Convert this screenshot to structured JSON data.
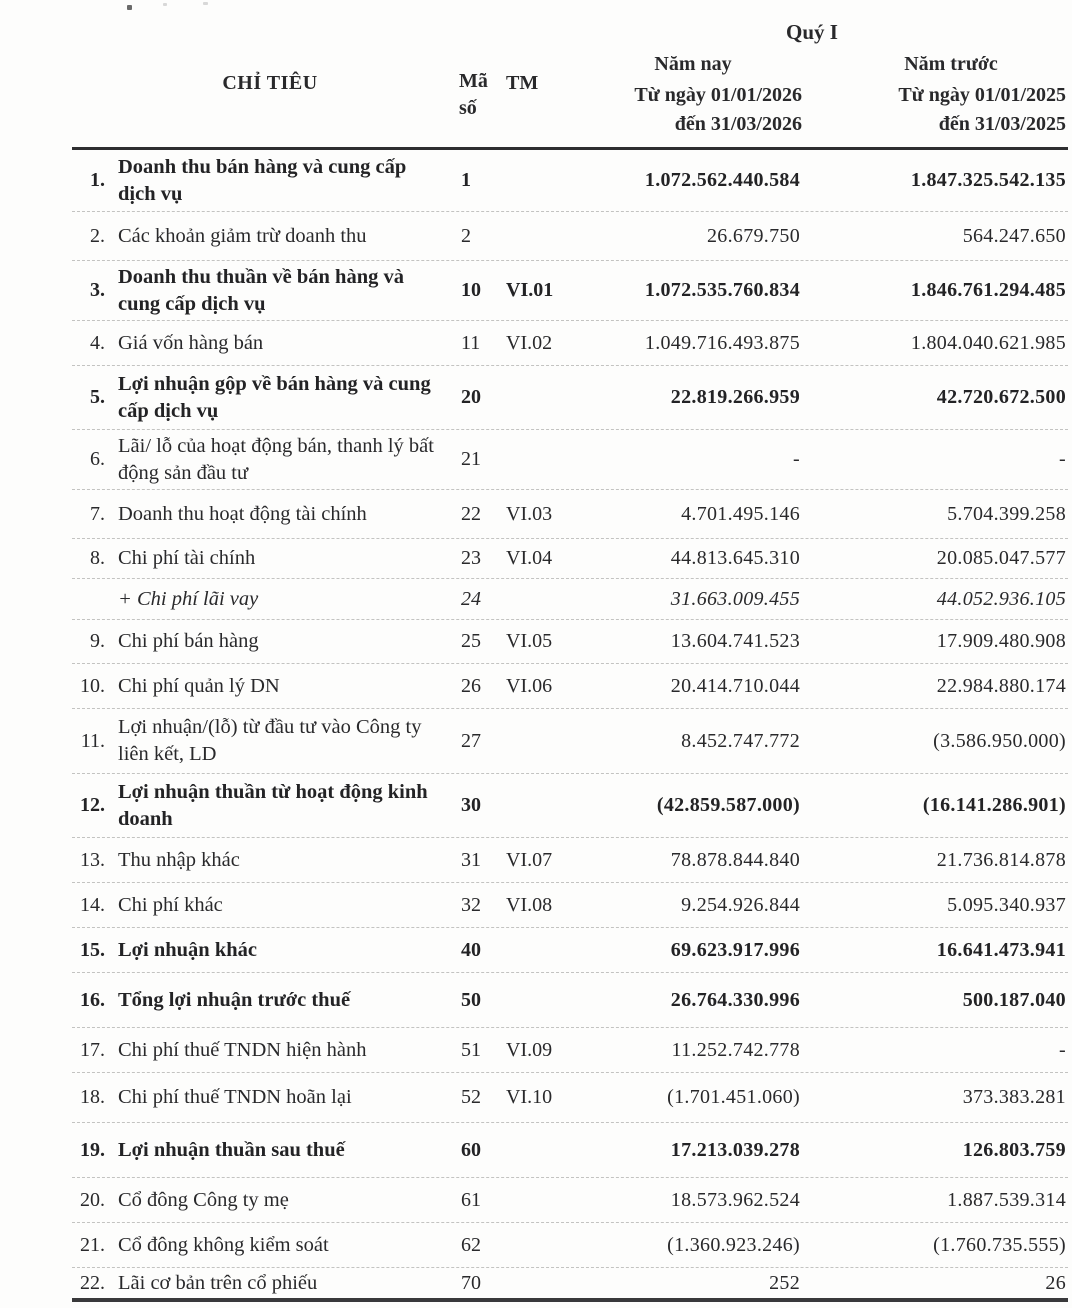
{
  "colors": {
    "ink": "#29292b",
    "rule": "#2e2e30"
  },
  "header": {
    "quarter_title": "Quý I",
    "criteria": "CHỈ TIÊU",
    "code_line1": "Mã",
    "code_line2": "số",
    "notes": "TM",
    "current_year_label": "Năm nay",
    "prior_year_label": "Năm trước",
    "current_period_line1": "Từ ngày 01/01/2026",
    "current_period_line2": "đến 31/03/2026",
    "prior_period_line1": "Từ ngày 01/01/2025",
    "prior_period_line2": "đến 31/03/2025"
  },
  "rows": [
    {
      "no": "1.",
      "label": "Doanh thu bán hàng và cung cấp dịch vụ",
      "code": "1",
      "tm": "",
      "current": "1.072.562.440.584",
      "prior": "1.847.325.542.135",
      "bold": true,
      "italic": false
    },
    {
      "no": "2.",
      "label": "Các khoản giảm trừ doanh thu",
      "code": "2",
      "tm": "",
      "current": "26.679.750",
      "prior": "564.247.650",
      "bold": false,
      "italic": false
    },
    {
      "no": "3.",
      "label": "Doanh thu thuần về bán hàng và cung cấp dịch vụ",
      "code": "10",
      "tm": "VI.01",
      "current": "1.072.535.760.834",
      "prior": "1.846.761.294.485",
      "bold": true,
      "italic": false
    },
    {
      "no": "4.",
      "label": "Giá vốn hàng bán",
      "code": "11",
      "tm": "VI.02",
      "current": "1.049.716.493.875",
      "prior": "1.804.040.621.985",
      "bold": false,
      "italic": false
    },
    {
      "no": "5.",
      "label": "Lợi nhuận gộp về bán hàng và cung cấp dịch vụ",
      "code": "20",
      "tm": "",
      "current": "22.819.266.959",
      "prior": "42.720.672.500",
      "bold": true,
      "italic": false
    },
    {
      "no": "6.",
      "label": "Lãi/ lỗ của hoạt động bán, thanh lý bất động sản đầu tư",
      "code": "21",
      "tm": "",
      "current": "-",
      "prior": "-",
      "bold": false,
      "italic": false
    },
    {
      "no": "7.",
      "label": "Doanh thu hoạt động tài chính",
      "code": "22",
      "tm": "VI.03",
      "current": "4.701.495.146",
      "prior": "5.704.399.258",
      "bold": false,
      "italic": false
    },
    {
      "no": "8.",
      "label": "Chi phí tài chính",
      "code": "23",
      "tm": "VI.04",
      "current": "44.813.645.310",
      "prior": "20.085.047.577",
      "bold": false,
      "italic": false
    },
    {
      "no": "",
      "label": "+ Chi phí lãi vay",
      "code": "24",
      "tm": "",
      "current": "31.663.009.455",
      "prior": "44.052.936.105",
      "bold": false,
      "italic": true
    },
    {
      "no": "9.",
      "label": "Chi phí bán hàng",
      "code": "25",
      "tm": "VI.05",
      "current": "13.604.741.523",
      "prior": "17.909.480.908",
      "bold": false,
      "italic": false
    },
    {
      "no": "10.",
      "label": "Chi phí quản lý DN",
      "code": "26",
      "tm": "VI.06",
      "current": "20.414.710.044",
      "prior": "22.984.880.174",
      "bold": false,
      "italic": false
    },
    {
      "no": "11.",
      "label": "Lợi nhuận/(lỗ) từ đầu tư vào Công ty liên kết, LD",
      "code": "27",
      "tm": "",
      "current": "8.452.747.772",
      "prior": "(3.586.950.000)",
      "bold": false,
      "italic": false
    },
    {
      "no": "12.",
      "label": "Lợi nhuận thuần từ hoạt động kinh doanh",
      "code": "30",
      "tm": "",
      "current": "(42.859.587.000)",
      "prior": "(16.141.286.901)",
      "bold": true,
      "italic": false
    },
    {
      "no": "13.",
      "label": "Thu nhập khác",
      "code": "31",
      "tm": "VI.07",
      "current": "78.878.844.840",
      "prior": "21.736.814.878",
      "bold": false,
      "italic": false
    },
    {
      "no": "14.",
      "label": "Chi phí khác",
      "code": "32",
      "tm": "VI.08",
      "current": "9.254.926.844",
      "prior": "5.095.340.937",
      "bold": false,
      "italic": false
    },
    {
      "no": "15.",
      "label": "Lợi nhuận khác",
      "code": "40",
      "tm": "",
      "current": "69.623.917.996",
      "prior": "16.641.473.941",
      "bold": true,
      "italic": false
    },
    {
      "no": "16.",
      "label": "Tổng lợi nhuận trước thuế",
      "code": "50",
      "tm": "",
      "current": "26.764.330.996",
      "prior": "500.187.040",
      "bold": true,
      "italic": false
    },
    {
      "no": "17.",
      "label": "Chi phí thuế TNDN hiện hành",
      "code": "51",
      "tm": "VI.09",
      "current": "11.252.742.778",
      "prior": "-",
      "bold": false,
      "italic": false
    },
    {
      "no": "18.",
      "label": "Chi phí thuế TNDN hoãn lại",
      "code": "52",
      "tm": "VI.10",
      "current": "(1.701.451.060)",
      "prior": "373.383.281",
      "bold": false,
      "italic": false
    },
    {
      "no": "19.",
      "label": "Lợi nhuận thuần sau thuế",
      "code": "60",
      "tm": "",
      "current": "17.213.039.278",
      "prior": "126.803.759",
      "bold": true,
      "italic": false
    },
    {
      "no": "20.",
      "label": "Cổ đông Công ty mẹ",
      "code": "61",
      "tm": "",
      "current": "18.573.962.524",
      "prior": "1.887.539.314",
      "bold": false,
      "italic": false
    },
    {
      "no": "21.",
      "label": "Cổ đông không kiểm soát",
      "code": "62",
      "tm": "",
      "current": "(1.360.923.246)",
      "prior": "(1.760.735.555)",
      "bold": false,
      "italic": false
    },
    {
      "no": "22.",
      "label": "Lãi cơ bản trên cổ phiếu",
      "code": "70",
      "tm": "",
      "current": "252",
      "prior": "26",
      "bold": false,
      "italic": false
    }
  ]
}
